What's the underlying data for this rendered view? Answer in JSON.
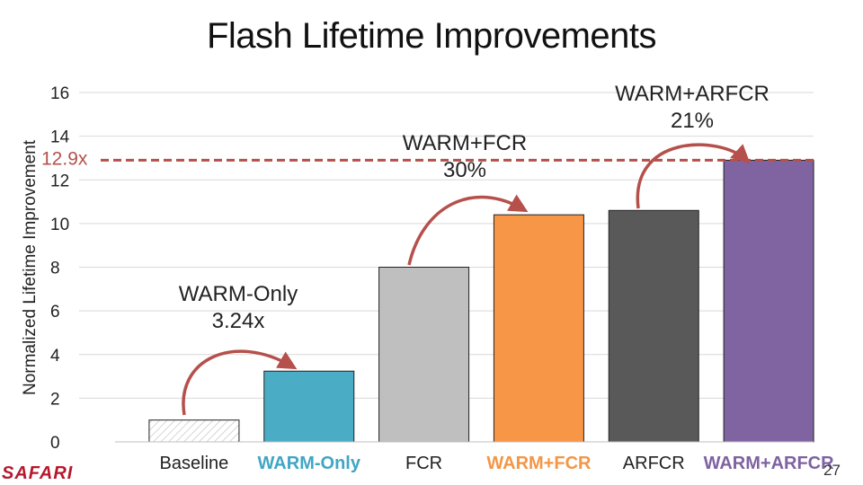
{
  "title": "Flash Lifetime Improvements",
  "page_number": "27",
  "logo_text": "SAFARI",
  "colors": {
    "axis_text": "#222222",
    "gridline": "#d9d9d9",
    "arrow": "#b5504b",
    "dashed_line": "#b5504b",
    "logo": "#b5182b"
  },
  "chart_data": {
    "type": "bar",
    "title": "Flash Lifetime Improvements",
    "ylabel": "Normalized Lifetime Improvement",
    "xlabel": "",
    "ylim": [
      0,
      16
    ],
    "yticks": [
      "0",
      "2",
      "4",
      "6",
      "8",
      "10",
      "12",
      "14",
      "16"
    ],
    "grid": true,
    "categories": [
      "Baseline",
      "WARM-Only",
      "FCR",
      "WARM+FCR",
      "ARFCR",
      "WARM+ARFCR"
    ],
    "category_label_colors": [
      "#222222",
      "#3fa6c4",
      "#222222",
      "#f39645",
      "#222222",
      "#7e62a1"
    ],
    "values": [
      1,
      3.24,
      8,
      10.4,
      10.6,
      12.9
    ],
    "bar_colors": [
      "hatched",
      "#4bacc6",
      "#bfbfbf",
      "#f79646",
      "#595959",
      "#8064a2"
    ],
    "reference_line": {
      "value": 12.9,
      "label": "12.9x"
    },
    "annotations": [
      {
        "lines": [
          "WARM-Only",
          "3.24x"
        ],
        "from": "Baseline",
        "to": "WARM-Only"
      },
      {
        "lines": [
          "WARM+FCR",
          "30%"
        ],
        "from": "FCR",
        "to": "WARM+FCR"
      },
      {
        "lines": [
          "WARM+ARFCR",
          "21%"
        ],
        "from": "ARFCR",
        "to": "WARM+ARFCR"
      }
    ]
  }
}
